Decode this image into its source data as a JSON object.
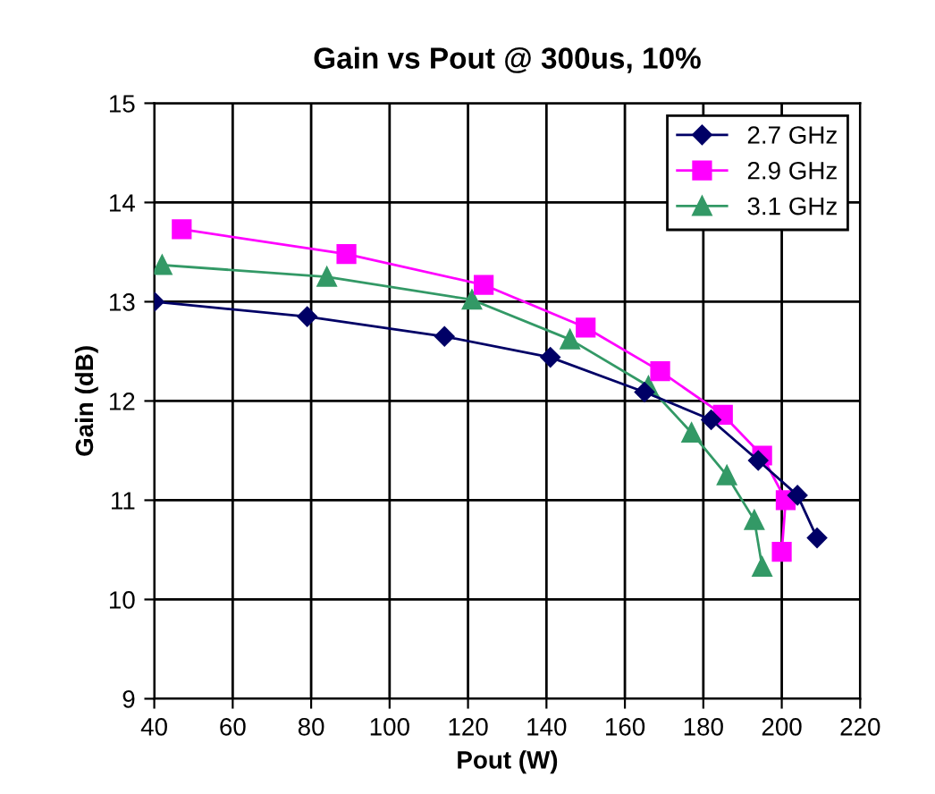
{
  "chart_data": {
    "type": "line",
    "title": "Gain vs Pout @ 300us, 10%",
    "xlabel": "Pout (W)",
    "ylabel": "Gain (dB)",
    "xlim": [
      40,
      220
    ],
    "xticks": [
      40,
      60,
      80,
      100,
      120,
      140,
      160,
      180,
      200,
      220
    ],
    "ylim": [
      9,
      15
    ],
    "yticks": [
      9,
      10,
      11,
      12,
      13,
      14,
      15
    ],
    "grid": true,
    "legend": "top right",
    "series": [
      {
        "name": "2.7 GHz",
        "color": "#000066",
        "marker": "diamond",
        "x": [
          40,
          79,
          114,
          141,
          165,
          182,
          194,
          204,
          209
        ],
        "values": [
          13.0,
          12.85,
          12.65,
          12.44,
          12.09,
          11.81,
          11.4,
          11.05,
          10.62
        ]
      },
      {
        "name": "2.9 GHz",
        "color": "#ff00ff",
        "marker": "square",
        "x": [
          47,
          89,
          124,
          150,
          169,
          185,
          195,
          201,
          200
        ],
        "values": [
          13.73,
          13.48,
          13.17,
          12.74,
          12.3,
          11.86,
          11.45,
          11.0,
          10.48
        ]
      },
      {
        "name": "3.1 GHz",
        "color": "#339966",
        "marker": "triangle",
        "x": [
          42,
          84,
          121,
          146,
          166,
          177,
          186,
          193,
          195
        ],
        "values": [
          13.37,
          13.25,
          13.02,
          12.62,
          12.15,
          11.68,
          11.25,
          10.8,
          10.33
        ]
      }
    ]
  }
}
